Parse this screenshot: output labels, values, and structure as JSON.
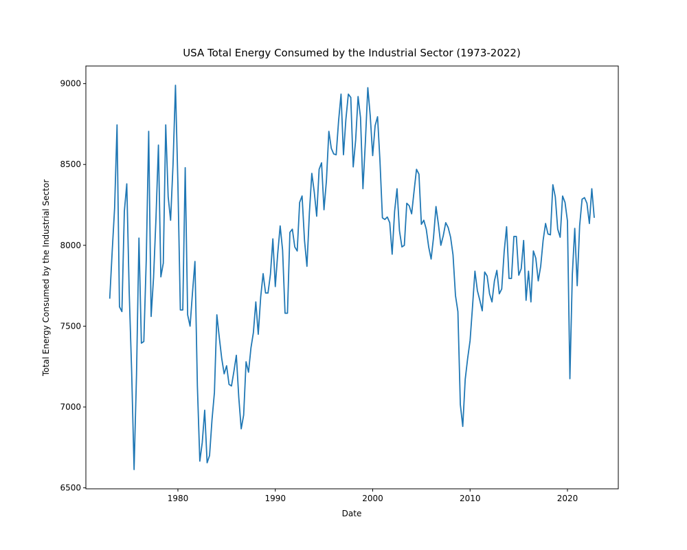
{
  "chart_data": {
    "type": "line",
    "title": "USA Total Energy Consumed by the Industrial Sector (1973-2022)",
    "x_label": "Date",
    "y_label": "Total Energy Consumed by the Industrial Sector",
    "x": [
      1973,
      1973.25,
      1973.5,
      1973.75,
      1974,
      1974.25,
      1974.5,
      1974.75,
      1975,
      1975.25,
      1975.5,
      1975.75,
      1976,
      1976.25,
      1976.5,
      1976.75,
      1977,
      1977.25,
      1977.5,
      1977.75,
      1978,
      1978.25,
      1978.5,
      1978.75,
      1979,
      1979.25,
      1979.5,
      1979.75,
      1980,
      1980.25,
      1980.5,
      1980.75,
      1981,
      1981.25,
      1981.5,
      1981.75,
      1982,
      1982.25,
      1982.5,
      1982.75,
      1983,
      1983.25,
      1983.5,
      1983.75,
      1984,
      1984.25,
      1984.5,
      1984.75,
      1985,
      1985.25,
      1985.5,
      1985.75,
      1986,
      1986.25,
      1986.5,
      1986.75,
      1987,
      1987.25,
      1987.5,
      1987.75,
      1988,
      1988.25,
      1988.5,
      1988.75,
      1989,
      1989.25,
      1989.5,
      1989.75,
      1990,
      1990.25,
      1990.5,
      1990.75,
      1991,
      1991.25,
      1991.5,
      1991.75,
      1992,
      1992.25,
      1992.5,
      1992.75,
      1993,
      1993.25,
      1993.5,
      1993.75,
      1994,
      1994.25,
      1994.5,
      1994.75,
      1995,
      1995.25,
      1995.5,
      1995.75,
      1996,
      1996.25,
      1996.5,
      1996.75,
      1997,
      1997.25,
      1997.5,
      1997.75,
      1998,
      1998.25,
      1998.5,
      1998.75,
      1999,
      1999.25,
      1999.5,
      1999.75,
      2000,
      2000.25,
      2000.5,
      2000.75,
      2001,
      2001.25,
      2001.5,
      2001.75,
      2002,
      2002.25,
      2002.5,
      2002.75,
      2003,
      2003.25,
      2003.5,
      2003.75,
      2004,
      2004.25,
      2004.5,
      2004.75,
      2005,
      2005.25,
      2005.5,
      2005.75,
      2006,
      2006.25,
      2006.5,
      2006.75,
      2007,
      2007.25,
      2007.5,
      2007.75,
      2008,
      2008.25,
      2008.5,
      2008.75,
      2009,
      2009.25,
      2009.5,
      2009.75,
      2010,
      2010.25,
      2010.5,
      2010.75,
      2011,
      2011.25,
      2011.5,
      2011.75,
      2012,
      2012.25,
      2012.5,
      2012.75,
      2013,
      2013.25,
      2013.5,
      2013.75,
      2014,
      2014.25,
      2014.5,
      2014.75,
      2015,
      2015.25,
      2015.5,
      2015.75,
      2016,
      2016.25,
      2016.5,
      2016.75,
      2017,
      2017.25,
      2017.5,
      2017.75,
      2018,
      2018.25,
      2018.5,
      2018.75,
      2019,
      2019.25,
      2019.5,
      2019.75,
      2020,
      2020.25,
      2020.5,
      2020.75,
      2021,
      2021.25,
      2021.5,
      2021.75,
      2022,
      2022.25,
      2022.5,
      2022.75
    ],
    "series": [
      {
        "color": "#1f77b4",
        "values": [
          7670,
          7960,
          8230,
          8745,
          7620,
          7590,
          8210,
          8380,
          7710,
          7220,
          6613,
          7200,
          8045,
          7395,
          7405,
          7910,
          8705,
          7560,
          7800,
          8170,
          8620,
          7805,
          7890,
          8745,
          8300,
          8155,
          8500,
          8990,
          8380,
          7600,
          7600,
          8480,
          7570,
          7500,
          7710,
          7900,
          7130,
          6665,
          6780,
          6980,
          6655,
          6700,
          6920,
          7090,
          7570,
          7430,
          7300,
          7205,
          7255,
          7140,
          7130,
          7220,
          7320,
          7060,
          6865,
          6950,
          7280,
          7215,
          7365,
          7460,
          7650,
          7450,
          7680,
          7825,
          7705,
          7705,
          7820,
          8040,
          7745,
          7950,
          8120,
          7970,
          7580,
          7580,
          8080,
          8100,
          7990,
          7965,
          8265,
          8305,
          8030,
          7870,
          8200,
          8445,
          8330,
          8180,
          8470,
          8510,
          8220,
          8400,
          8705,
          8600,
          8565,
          8560,
          8770,
          8935,
          8560,
          8780,
          8935,
          8915,
          8485,
          8650,
          8920,
          8790,
          8350,
          8640,
          8975,
          8800,
          8555,
          8740,
          8795,
          8520,
          8170,
          8160,
          8175,
          8140,
          7945,
          8210,
          8350,
          8090,
          7990,
          8000,
          8260,
          8245,
          8195,
          8335,
          8470,
          8440,
          8130,
          8155,
          8100,
          7990,
          7915,
          8050,
          8240,
          8130,
          8000,
          8060,
          8140,
          8110,
          8050,
          7940,
          7690,
          7590,
          7015,
          6880,
          7170,
          7300,
          7410,
          7620,
          7840,
          7720,
          7660,
          7595,
          7835,
          7810,
          7700,
          7650,
          7780,
          7845,
          7700,
          7730,
          7960,
          8115,
          7795,
          7795,
          8055,
          8055,
          7815,
          7855,
          8030,
          7660,
          7840,
          7650,
          7965,
          7920,
          7780,
          7870,
          8030,
          8135,
          8070,
          8065,
          8375,
          8300,
          8100,
          8050,
          8305,
          8265,
          8150,
          7175,
          7820,
          8105,
          7750,
          8120,
          8285,
          8295,
          8260,
          8135,
          8350,
          8170
        ]
      }
    ],
    "xlim": [
      1970.55,
      2025.22
    ],
    "ylim": [
      6494,
      9109
    ],
    "xticks": [
      1980,
      1990,
      2000,
      2010,
      2020
    ],
    "yticks": [
      6500,
      7000,
      7500,
      8000,
      8500,
      9000
    ]
  }
}
